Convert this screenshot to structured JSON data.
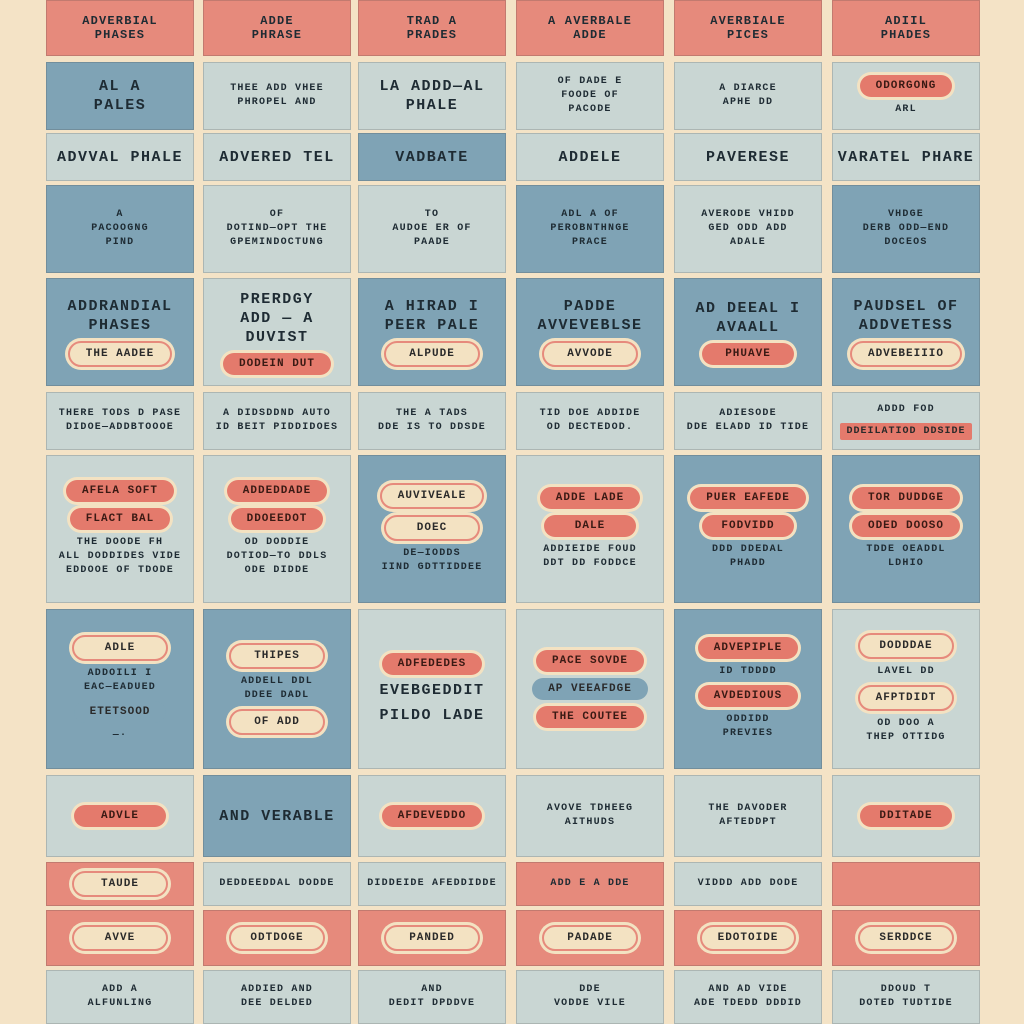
{
  "colors": {
    "background": "#f4e3c6",
    "blue": "#7fa3b5",
    "light": "#c9d6d3",
    "salmon": "#e68a7c",
    "text": "#1e2b33"
  },
  "rows": [
    {
      "cells": [
        {
          "bg": "salmon",
          "items": [
            {
              "kind": "text",
              "style": "hd",
              "text": "ADVERBIAL\nPHASES"
            }
          ]
        },
        {
          "bg": "salmon",
          "items": [
            {
              "kind": "text",
              "style": "hd",
              "text": "ADDE\nPHRASE"
            }
          ]
        },
        {
          "bg": "salmon",
          "items": [
            {
              "kind": "text",
              "style": "hd",
              "text": "TRAD A\nPRADES"
            }
          ]
        },
        {
          "bg": "salmon",
          "items": [
            {
              "kind": "text",
              "style": "hd",
              "text": "A AVERBALE\nADDE"
            }
          ]
        },
        {
          "bg": "salmon",
          "items": [
            {
              "kind": "text",
              "style": "hd",
              "text": "AVERBIALE\nPICES"
            }
          ]
        },
        {
          "bg": "salmon",
          "items": [
            {
              "kind": "text",
              "style": "hd",
              "text": "ADIIL\nPHADES"
            }
          ]
        }
      ]
    },
    {
      "cells": [
        {
          "bg": "blue",
          "items": [
            {
              "kind": "text",
              "style": "big",
              "text": "AL A\nPALES"
            }
          ]
        },
        {
          "bg": "light",
          "items": [
            {
              "kind": "text",
              "style": "",
              "text": "THEE ADD VHEE\nPHROPEL AND"
            }
          ]
        },
        {
          "bg": "light",
          "items": [
            {
              "kind": "text",
              "style": "big",
              "text": "LA ADDD—AL\nPHALE"
            }
          ]
        },
        {
          "bg": "light",
          "items": [
            {
              "kind": "text",
              "style": "",
              "text": "OF DADE E\nFOODE OF\nPACODE"
            }
          ]
        },
        {
          "bg": "light",
          "items": [
            {
              "kind": "text",
              "style": "",
              "text": "A DIARCE\nAPHE DD"
            }
          ]
        },
        {
          "bg": "light",
          "items": [
            {
              "kind": "pill",
              "style": "salmon",
              "text": "ODORGONG"
            },
            {
              "kind": "text",
              "style": "",
              "text": "ARL"
            }
          ]
        }
      ]
    },
    {
      "cells": [
        {
          "bg": "light",
          "items": [
            {
              "kind": "text",
              "style": "big",
              "text": "ADVVAL PHALE"
            }
          ]
        },
        {
          "bg": "light",
          "items": [
            {
              "kind": "text",
              "style": "big",
              "text": "ADVERED TEL"
            }
          ]
        },
        {
          "bg": "blue",
          "items": [
            {
              "kind": "text",
              "style": "big",
              "text": "VADBATE"
            }
          ]
        },
        {
          "bg": "light",
          "items": [
            {
              "kind": "text",
              "style": "big",
              "text": "ADDELE"
            }
          ]
        },
        {
          "bg": "light",
          "items": [
            {
              "kind": "text",
              "style": "big",
              "text": "PAVERESE"
            }
          ]
        },
        {
          "bg": "light",
          "items": [
            {
              "kind": "text",
              "style": "big",
              "text": "VARATEL PHARE"
            }
          ]
        }
      ]
    },
    {
      "cells": [
        {
          "bg": "blue",
          "items": [
            {
              "kind": "text",
              "style": "",
              "text": "A\nPACOOGNG\nPIND"
            }
          ]
        },
        {
          "bg": "light",
          "items": [
            {
              "kind": "text",
              "style": "",
              "text": "OF\nDOTIND—OPT THE\nGPEMINDOCTUNG"
            }
          ]
        },
        {
          "bg": "light",
          "items": [
            {
              "kind": "text",
              "style": "",
              "text": "TO\nAUDOE ER OF\nPAADE"
            }
          ]
        },
        {
          "bg": "blue",
          "items": [
            {
              "kind": "text",
              "style": "",
              "text": "ADL A OF\nPEROBNTHNGE\nPRACE"
            }
          ]
        },
        {
          "bg": "light",
          "items": [
            {
              "kind": "text",
              "style": "",
              "text": "AVERODE VHIDD\nGED ODD ADD\nADALE"
            }
          ]
        },
        {
          "bg": "blue",
          "items": [
            {
              "kind": "text",
              "style": "",
              "text": "VHDGE\nDERB ODD—END\nDOCEOS"
            }
          ]
        }
      ]
    },
    {
      "cells": [
        {
          "bg": "blue",
          "items": [
            {
              "kind": "text",
              "style": "big",
              "text": "ADDRANDIAL\nPHASES"
            },
            {
              "kind": "pill",
              "style": "cream",
              "text": "THE AADEE"
            }
          ]
        },
        {
          "bg": "light",
          "items": [
            {
              "kind": "text",
              "style": "big",
              "text": "PRERDGY\nADD — A DUVIST"
            },
            {
              "kind": "pill",
              "style": "salmon",
              "text": "DODEIN DUT"
            }
          ]
        },
        {
          "bg": "blue",
          "items": [
            {
              "kind": "text",
              "style": "big",
              "text": "A HIRAD I\nPEER PALE"
            },
            {
              "kind": "pill",
              "style": "cream",
              "text": "ALPUDE"
            }
          ]
        },
        {
          "bg": "blue",
          "items": [
            {
              "kind": "text",
              "style": "big",
              "text": "PADDE\nAVVEVEBLSE"
            },
            {
              "kind": "pill",
              "style": "cream",
              "text": "AVVODE"
            }
          ]
        },
        {
          "bg": "blue",
          "items": [
            {
              "kind": "text",
              "style": "big",
              "text": "AD DEEAL I\nAVAALL"
            },
            {
              "kind": "pill",
              "style": "salmon",
              "text": "PHUAVE"
            }
          ]
        },
        {
          "bg": "blue",
          "items": [
            {
              "kind": "text",
              "style": "big",
              "text": "PAUDSEL OF\nADDVETESS"
            },
            {
              "kind": "pill",
              "style": "cream",
              "text": "ADVEBEIIIO"
            }
          ]
        }
      ]
    },
    {
      "cells": [
        {
          "bg": "light",
          "items": [
            {
              "kind": "text",
              "style": "",
              "text": "THERE TODS D PASE\nDIDOE—ADDBTOOOE"
            }
          ]
        },
        {
          "bg": "light",
          "items": [
            {
              "kind": "text",
              "style": "",
              "text": "A DIDSDDND AUTO\nID BEIT PIDDIDOES"
            }
          ]
        },
        {
          "bg": "light",
          "items": [
            {
              "kind": "text",
              "style": "",
              "text": "THE A TADS\nDDE IS TO DDSDE"
            }
          ]
        },
        {
          "bg": "light",
          "items": [
            {
              "kind": "text",
              "style": "",
              "text": "TID DOE ADDIDE\nOD DECTEDOD."
            }
          ]
        },
        {
          "bg": "light",
          "items": [
            {
              "kind": "text",
              "style": "",
              "text": "ADIESODE\nDDE ELADD ID TIDE"
            }
          ]
        },
        {
          "bg": "light",
          "items": [
            {
              "kind": "text",
              "style": "",
              "text": "ADDD FOD"
            },
            {
              "kind": "pill",
              "style": "flat",
              "text": "DDEILATIOD DDSIDE"
            }
          ]
        }
      ]
    },
    {
      "cells": [
        {
          "bg": "light",
          "items": [
            {
              "kind": "pill",
              "style": "salmon",
              "text": "AFELA SOFT"
            },
            {
              "kind": "pill",
              "style": "salmon",
              "text": "FLACT BAL"
            },
            {
              "kind": "text",
              "style": "",
              "text": "THE DOODE FH\nALL DODDIDES VIDE\nEDDOOE OF TDODE"
            }
          ]
        },
        {
          "bg": "light",
          "items": [
            {
              "kind": "pill",
              "style": "salmon",
              "text": "ADDEDDADE"
            },
            {
              "kind": "pill",
              "style": "salmon",
              "text": "DDOEEDOT"
            },
            {
              "kind": "text",
              "style": "",
              "text": "OD DODDIE\nDOTIOD—TO DDLS\nODE DIDDE"
            }
          ]
        },
        {
          "bg": "blue",
          "items": [
            {
              "kind": "pill",
              "style": "cream",
              "text": "AUVIVEALE"
            },
            {
              "kind": "pill",
              "style": "cream",
              "text": "DOEC"
            },
            {
              "kind": "text",
              "style": "",
              "text": "DE—IODDS\nIIND GDTTIDDEE"
            }
          ]
        },
        {
          "bg": "light",
          "items": [
            {
              "kind": "pill",
              "style": "salmon",
              "text": "ADDE LADE"
            },
            {
              "kind": "pill",
              "style": "salmon",
              "text": "DALE"
            },
            {
              "kind": "text",
              "style": "",
              "text": "ADDIEIDE FOUD\nDDT DD FODDCE"
            }
          ]
        },
        {
          "bg": "blue",
          "items": [
            {
              "kind": "pill",
              "style": "salmon",
              "text": "PUER EAFEDE"
            },
            {
              "kind": "pill",
              "style": "salmon",
              "text": "FODVIDD"
            },
            {
              "kind": "text",
              "style": "",
              "text": "DDD DDEDAL\nPHADD"
            }
          ]
        },
        {
          "bg": "blue",
          "items": [
            {
              "kind": "pill",
              "style": "salmon",
              "text": "TOR DUDDGE"
            },
            {
              "kind": "pill",
              "style": "salmon",
              "text": "ODED DOOSO"
            },
            {
              "kind": "text",
              "style": "",
              "text": "TDDE OEADDL\nLDHIO"
            }
          ]
        }
      ]
    },
    {
      "cells": [
        {
          "bg": "blue",
          "items": [
            {
              "kind": "pill",
              "style": "cream",
              "text": "ADLE"
            },
            {
              "kind": "text",
              "style": "",
              "text": "ADDOILI I\nEAC—EADUED"
            },
            {
              "kind": "pill",
              "style": "blue",
              "text": "ETETSOOD"
            },
            {
              "kind": "text",
              "style": "",
              "text": "—·"
            }
          ]
        },
        {
          "bg": "blue",
          "items": [
            {
              "kind": "pill",
              "style": "cream",
              "text": "THIPES"
            },
            {
              "kind": "text",
              "style": "",
              "text": "ADDELL DDL\nDDEE DADL"
            },
            {
              "kind": "pill",
              "style": "cream",
              "text": "OF ADD"
            }
          ]
        },
        {
          "bg": "light",
          "items": [
            {
              "kind": "pill",
              "style": "salmon",
              "text": "ADFEDEDES"
            },
            {
              "kind": "text",
              "style": "big",
              "text": "EVEBGEDDIT"
            },
            {
              "kind": "text",
              "style": "big",
              "text": "PILDO LADE"
            }
          ]
        },
        {
          "bg": "light",
          "items": [
            {
              "kind": "pill",
              "style": "salmon",
              "text": "PACE SOVDE"
            },
            {
              "kind": "pill",
              "style": "blue",
              "text": "AP VEEAFDGE"
            },
            {
              "kind": "pill",
              "style": "salmon",
              "text": "THE COUTEE"
            }
          ]
        },
        {
          "bg": "blue",
          "items": [
            {
              "kind": "pill",
              "style": "salmon",
              "text": "ADVEPIPLE"
            },
            {
              "kind": "text",
              "style": "",
              "text": "ID TDDDD"
            },
            {
              "kind": "pill",
              "style": "salmon",
              "text": "AVDEDIOUS"
            },
            {
              "kind": "text",
              "style": "",
              "text": "ODDIDD\nPREVIES"
            }
          ]
        },
        {
          "bg": "light",
          "items": [
            {
              "kind": "pill",
              "style": "cream",
              "text": "DODDDAE"
            },
            {
              "kind": "text",
              "style": "",
              "text": "LAVEL DD"
            },
            {
              "kind": "pill",
              "style": "cream",
              "text": "AFPTDIDT"
            },
            {
              "kind": "text",
              "style": "",
              "text": "OD DOO A\nTHEP OTTIDG"
            }
          ]
        }
      ]
    },
    {
      "cells": [
        {
          "bg": "light",
          "items": [
            {
              "kind": "pill",
              "style": "salmon",
              "text": "ADVLE"
            }
          ]
        },
        {
          "bg": "blue",
          "items": [
            {
              "kind": "text",
              "style": "big",
              "text": "AND VERABLE"
            }
          ]
        },
        {
          "bg": "light",
          "items": [
            {
              "kind": "pill",
              "style": "salmon",
              "text": "AFDEVEDDO"
            }
          ]
        },
        {
          "bg": "light",
          "items": [
            {
              "kind": "text",
              "style": "",
              "text": "AVOVE TDHEEG\nAITHUDS"
            }
          ]
        },
        {
          "bg": "light",
          "items": [
            {
              "kind": "text",
              "style": "",
              "text": "THE DAVODER\nAFTEDDPT"
            }
          ]
        },
        {
          "bg": "light",
          "items": [
            {
              "kind": "pill",
              "style": "salmon",
              "text": "DDITADE"
            }
          ]
        }
      ]
    },
    {
      "cells": [
        {
          "bg": "salmon",
          "items": [
            {
              "kind": "pill",
              "style": "cream",
              "text": "TAUDE"
            }
          ]
        },
        {
          "bg": "light",
          "items": [
            {
              "kind": "text",
              "style": "",
              "text": "DEDDEEDDAL DODDE"
            }
          ]
        },
        {
          "bg": "light",
          "items": [
            {
              "kind": "text",
              "style": "",
              "text": "DIDDEIDE AFEDDIDDE"
            }
          ]
        },
        {
          "bg": "salmon",
          "items": [
            {
              "kind": "text",
              "style": "",
              "text": "ADD E A DDE"
            }
          ]
        },
        {
          "bg": "light",
          "items": [
            {
              "kind": "text",
              "style": "",
              "text": "VIDDD ADD DODE"
            }
          ]
        },
        {
          "bg": "salmon",
          "items": []
        }
      ]
    },
    {
      "cells": [
        {
          "bg": "salmon",
          "items": [
            {
              "kind": "pill",
              "style": "cream",
              "text": "AVVE"
            }
          ]
        },
        {
          "bg": "salmon",
          "items": [
            {
              "kind": "pill",
              "style": "cream",
              "text": "ODTDOGE"
            }
          ]
        },
        {
          "bg": "salmon",
          "items": [
            {
              "kind": "pill",
              "style": "cream",
              "text": "PANDED"
            }
          ]
        },
        {
          "bg": "salmon",
          "items": [
            {
              "kind": "pill",
              "style": "cream",
              "text": "PADADE"
            }
          ]
        },
        {
          "bg": "salmon",
          "items": [
            {
              "kind": "pill",
              "style": "cream",
              "text": "EDOTOIDE"
            }
          ]
        },
        {
          "bg": "salmon",
          "items": [
            {
              "kind": "pill",
              "style": "cream",
              "text": "SERDDCE"
            }
          ]
        }
      ]
    },
    {
      "cells": [
        {
          "bg": "light",
          "items": [
            {
              "kind": "text",
              "style": "",
              "text": "ADD A\nALFUNLING"
            }
          ]
        },
        {
          "bg": "light",
          "items": [
            {
              "kind": "text",
              "style": "",
              "text": "ADDIED AND\nDEE DELDED"
            }
          ]
        },
        {
          "bg": "light",
          "items": [
            {
              "kind": "text",
              "style": "",
              "text": "AND\nDEDIT DPDDVE"
            }
          ]
        },
        {
          "bg": "light",
          "items": [
            {
              "kind": "text",
              "style": "",
              "text": "DDE\nVODDE VILE"
            }
          ]
        },
        {
          "bg": "light",
          "items": [
            {
              "kind": "text",
              "style": "",
              "text": "AND AD VIDE\nADE TDEDD DDDID"
            }
          ]
        },
        {
          "bg": "light",
          "items": [
            {
              "kind": "text",
              "style": "",
              "text": "DDOUD T\nDOTED TUDTIDE"
            }
          ]
        }
      ]
    }
  ]
}
